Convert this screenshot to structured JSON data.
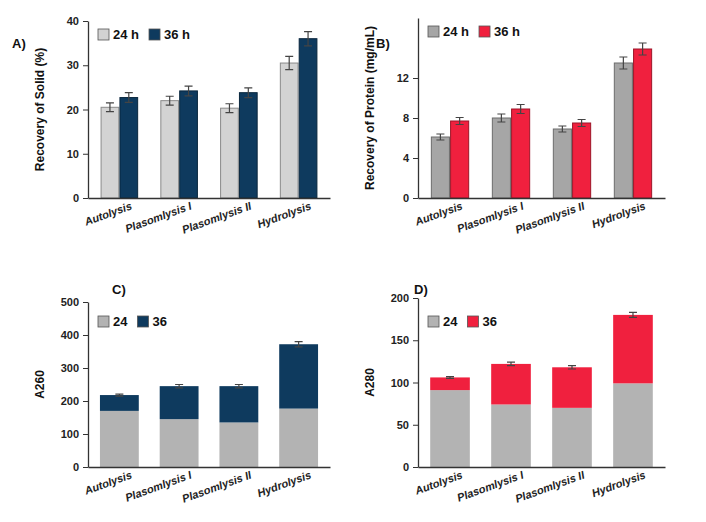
{
  "chart_data": [
    {
      "type": "bar",
      "title": "A)",
      "y_label": "Recovery of Solid (%)",
      "categories": [
        "Autolysis",
        "Plasomlysis I",
        "Plasomlysis II",
        "Hydrolysis"
      ],
      "series": [
        {
          "name": "24 h",
          "color": "#d3d3d3",
          "values": [
            20.5,
            22,
            20.3,
            30.5
          ],
          "errors": [
            1,
            1,
            1,
            1.5
          ]
        },
        {
          "name": "36 h",
          "color": "#0e3a5e",
          "values": [
            22.7,
            24.2,
            23.8,
            36
          ],
          "errors": [
            1.1,
            1.1,
            1.1,
            1.6
          ]
        }
      ],
      "ylim": [
        0,
        40
      ],
      "yticks": [
        0,
        10,
        20,
        30,
        40
      ],
      "stacked": false,
      "grid": false,
      "legend": "upper left"
    },
    {
      "type": "bar",
      "title": "B)",
      "y_label": "Recovery of Protein (mg/mL)",
      "categories": [
        "Autolysis",
        "Plasomlysis I",
        "Plasomlysis II",
        "Hydrolysis"
      ],
      "series": [
        {
          "name": "24 h",
          "color": "#a6a6a6",
          "values": [
            6.1,
            8,
            6.9,
            13.5
          ],
          "errors": [
            0.3,
            0.4,
            0.3,
            0.6
          ]
        },
        {
          "name": "36 h",
          "color": "#f0203e",
          "values": [
            7.7,
            8.9,
            7.5,
            14.9
          ],
          "errors": [
            0.35,
            0.45,
            0.35,
            0.6
          ]
        }
      ],
      "ylim": [
        0,
        18
      ],
      "yticks": [
        0,
        4,
        8,
        12
      ],
      "stacked": false,
      "grid": false,
      "legend": "upper left"
    },
    {
      "type": "bar",
      "title": "C)",
      "y_label": "A260",
      "categories": [
        "Autolysis",
        "Plasomlysis I",
        "Plasomlysis II",
        "Hydrolysis"
      ],
      "series": [
        {
          "name": "24",
          "color": "#b3b3b3",
          "values": [
            170,
            145,
            135,
            177
          ]
        },
        {
          "name": "36",
          "color": "#0e3a5e",
          "values": [
            48,
            100,
            110,
            195
          ],
          "errors": [
            3,
            5,
            5,
            8
          ]
        }
      ],
      "ylim": [
        0,
        500
      ],
      "yticks": [
        0,
        100,
        200,
        300,
        400,
        500
      ],
      "stacked": true,
      "grid": false,
      "legend": "upper left"
    },
    {
      "type": "bar",
      "title": "D)",
      "y_label": "A280",
      "categories": [
        "Autolysis",
        "Plasomlysis I",
        "Plasomlysis II",
        "Hydrolysis"
      ],
      "series": [
        {
          "name": "24",
          "color": "#b3b3b3",
          "values": [
            91,
            74,
            70,
            99
          ]
        },
        {
          "name": "36",
          "color": "#f0203e",
          "values": [
            15,
            48,
            48,
            81
          ],
          "errors": [
            1,
            2,
            2,
            3
          ]
        }
      ],
      "ylim": [
        0,
        200
      ],
      "yticks": [
        0,
        50,
        100,
        150,
        200
      ],
      "stacked": true,
      "grid": false,
      "legend": "upper left"
    }
  ]
}
